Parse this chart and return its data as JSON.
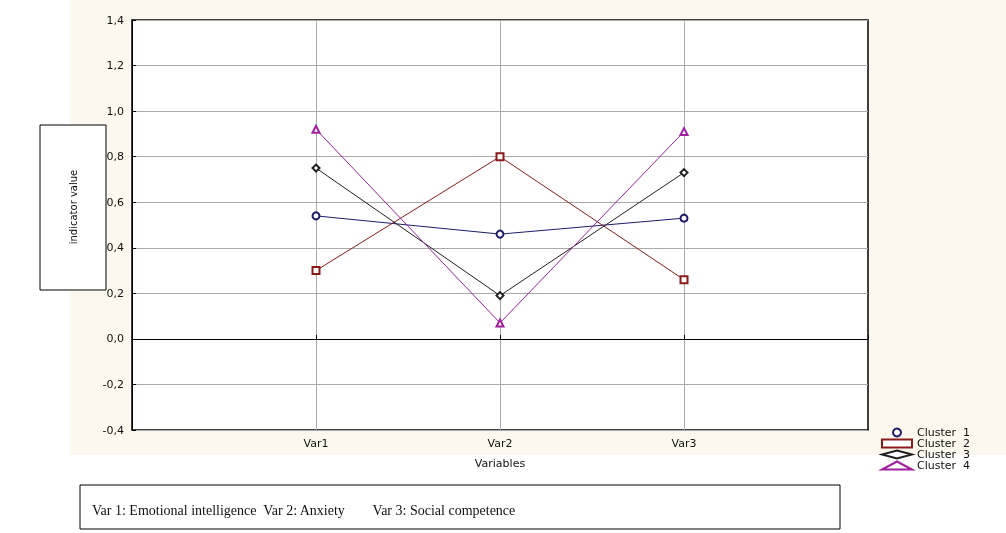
{
  "chart_data": {
    "type": "line",
    "xlabel": "Variables",
    "ylabel": "indicator value",
    "categories": [
      null,
      "Var1",
      "Var2",
      "Var3",
      null
    ],
    "series": [
      {
        "name": "Cluster  1",
        "color": "#1c1c6a",
        "marker": "circle",
        "values": [
          null,
          0.54,
          0.46,
          0.53,
          null
        ]
      },
      {
        "name": "Cluster  2",
        "color": "#8b1a1a",
        "marker": "square",
        "values": [
          null,
          0.3,
          0.8,
          0.26,
          null
        ]
      },
      {
        "name": "Cluster  3",
        "color": "#202020",
        "marker": "diamond",
        "values": [
          null,
          0.75,
          0.19,
          0.73,
          null
        ]
      },
      {
        "name": "Cluster  4",
        "color": "#a020a0",
        "marker": "triangle",
        "values": [
          null,
          0.92,
          0.07,
          0.91,
          null
        ]
      }
    ],
    "ylim": [
      -0.4,
      1.4
    ],
    "yticks": [
      {
        "value": -0.4,
        "label": "-0,4"
      },
      {
        "value": -0.2,
        "label": "-0,2"
      },
      {
        "value": 0,
        "label": "0,0"
      },
      {
        "value": 0.2,
        "label": "0,2"
      },
      {
        "value": 0.4,
        "label": "0,4"
      },
      {
        "value": 0.6,
        "label": "0,6"
      },
      {
        "value": 0.8,
        "label": "0,8"
      },
      {
        "value": 1.0,
        "label": "1,0"
      },
      {
        "value": 1.2,
        "label": "1,2"
      },
      {
        "value": 1.4,
        "label": "1,4"
      }
    ],
    "grid": true,
    "legend": "bottom right",
    "line_style": "solid",
    "annotations": [
      "Var 1: Emotional intelligence  Var 2: Anxiety        Var 3: Social competence"
    ]
  }
}
